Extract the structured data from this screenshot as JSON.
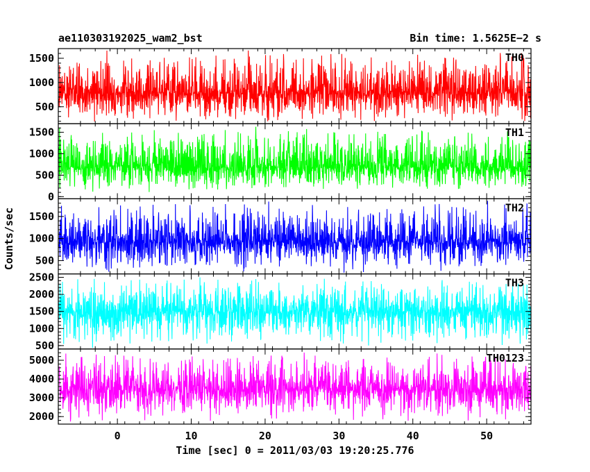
{
  "header": {
    "left": "ae110303192025_wam2_bst",
    "right": "Bin time: 1.5625E−2 s"
  },
  "chart_data": {
    "type": "line",
    "title": "ae110303192025_wam2_bst",
    "subtitle": "Bin time: 1.5625E−2 s",
    "xlabel": "Time [sec] 0 = 2011/03/03 19:20:25.776",
    "ylabel": "Counts/sec",
    "x_range": [
      -8.0,
      56.0
    ],
    "x_ticks": [
      0,
      10,
      20,
      30,
      40,
      50
    ],
    "x_tick_labels": [
      "0",
      "10",
      "20",
      "30",
      "40",
      "50"
    ],
    "bin_time_s": 0.015625,
    "grid": false,
    "panels": [
      {
        "name": "TH0",
        "color": "#ff0000",
        "ylim": [
          150,
          1700
        ],
        "y_ticks": [
          500,
          1000,
          1500
        ],
        "y_tick_labels": [
          "500",
          "1000",
          "1500"
        ],
        "mean": 780,
        "spread_low": 150,
        "spread_high": 1700
      },
      {
        "name": "TH1",
        "color": "#00ff00",
        "ylim": [
          -50,
          1700
        ],
        "y_ticks": [
          0,
          500,
          1000,
          1500
        ],
        "y_tick_labels": [
          "0",
          "500",
          "1000",
          "1500"
        ],
        "mean": 680,
        "spread_low": 80,
        "spread_high": 1650
      },
      {
        "name": "TH2",
        "color": "#0000ff",
        "ylim": [
          200,
          1900
        ],
        "y_ticks": [
          500,
          1000,
          1500
        ],
        "y_tick_labels": [
          "500",
          "1000",
          "1500"
        ],
        "mean": 920,
        "spread_low": 220,
        "spread_high": 1880
      },
      {
        "name": "TH3",
        "color": "#00ffff",
        "ylim": [
          400,
          2600
        ],
        "y_ticks": [
          500,
          1000,
          1500,
          2000,
          2500
        ],
        "y_tick_labels": [
          "500",
          "1000",
          "1500",
          "2000",
          "2500"
        ],
        "mean": 1500,
        "spread_low": 420,
        "spread_high": 2560
      },
      {
        "name": "TH0123",
        "color": "#ff00ff",
        "ylim": [
          1600,
          5600
        ],
        "y_ticks": [
          2000,
          3000,
          4000,
          5000
        ],
        "y_tick_labels": [
          "2000",
          "3000",
          "4000",
          "5000"
        ],
        "mean": 3450,
        "spread_low": 1650,
        "spread_high": 5500
      }
    ]
  }
}
